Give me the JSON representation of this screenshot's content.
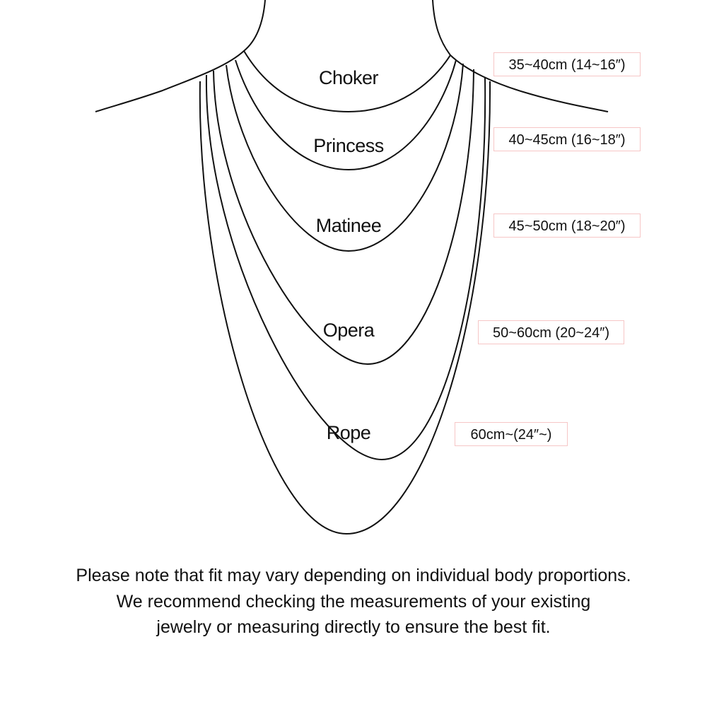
{
  "necklaces": [
    {
      "name": "Choker",
      "length": "35~40cm (14~16″)"
    },
    {
      "name": "Princess",
      "length": "40~45cm (16~18″)"
    },
    {
      "name": "Matinee",
      "length": "45~50cm (18~20″)"
    },
    {
      "name": "Opera",
      "length": "50~60cm (20~24″)"
    },
    {
      "name": "Rope",
      "length": "60cm~(24″~)"
    }
  ],
  "note": [
    "Please note that fit may vary depending on individual body proportions.",
    "We recommend checking the measurements of your existing",
    "jewelry or measuring directly to ensure the best fit."
  ],
  "colors": {
    "line": "#111111",
    "label_border": "#f6c6c6"
  }
}
